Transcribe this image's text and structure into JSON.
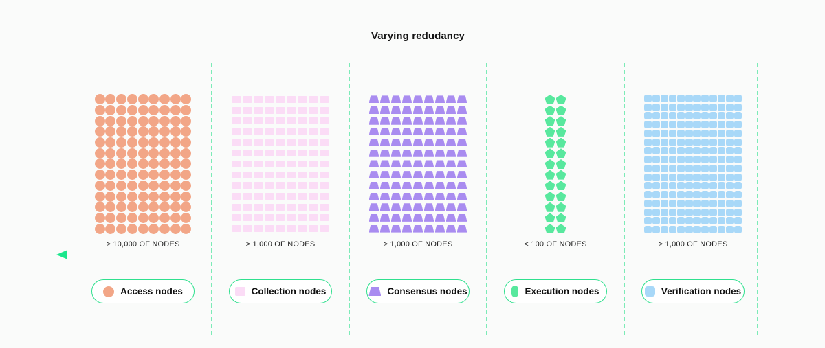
{
  "title": "Varying redudancy",
  "divider_color": "#7CEBB7",
  "arrow": {
    "direction": "left",
    "color_start": "#1BE78C",
    "color_end": "#0B8F57"
  },
  "legend_border_color": "#2FE08E",
  "sections": [
    {
      "id": "access",
      "count_label": "> 10,000 OF NODES",
      "legend_label": "Access nodes",
      "color": "#F2A687",
      "shape": "circle",
      "icon": "circle-icon",
      "grid": {
        "rows": 13,
        "cols": 9,
        "total_marks": 117
      }
    },
    {
      "id": "collection",
      "count_label": "> 1,000 OF NODES",
      "legend_label": "Collection nodes",
      "color": "#FBDCF6",
      "shape": "rect",
      "icon": "square-icon",
      "grid": {
        "rows": 13,
        "cols": 9,
        "total_marks": 117
      }
    },
    {
      "id": "consensus",
      "count_label": "> 1,000 OF NODES",
      "legend_label": "Consensus nodes",
      "color": "#A98CF0",
      "shape": "trapezoid",
      "icon": "trapezoid-icon",
      "grid": {
        "rows": 13,
        "cols": 9,
        "total_marks": 117
      }
    },
    {
      "id": "execution",
      "count_label": "< 100 OF NODES",
      "legend_label": "Execution nodes",
      "color": "#58E89E",
      "shape": "pentagon",
      "icon": "capsule-icon",
      "grid": {
        "rows": 13,
        "cols": 2,
        "total_marks": 26
      }
    },
    {
      "id": "verification",
      "count_label": "> 1,000 OF NODES",
      "legend_label": "Verification nodes",
      "color": "#A8D8F8",
      "shape": "rounded-square",
      "icon": "rounded-square-icon",
      "grid": {
        "rows": 16,
        "cols": 12,
        "total_marks": 192
      }
    }
  ]
}
